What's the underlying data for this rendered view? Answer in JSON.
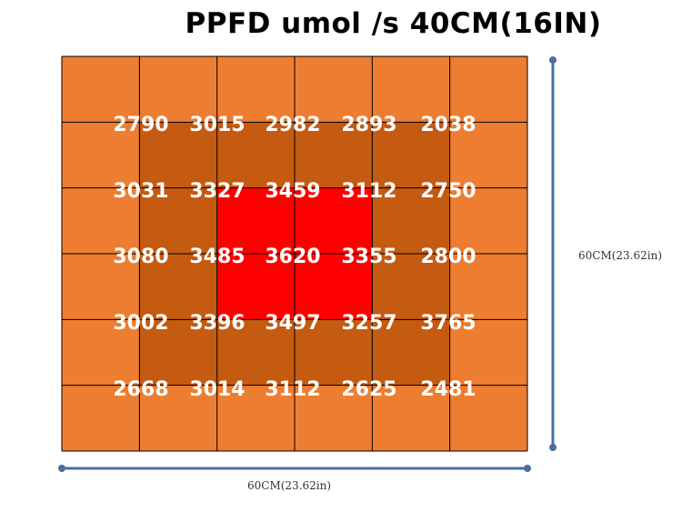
{
  "title": "PPFD umol /s  40CM(16IN)",
  "dimensions": {
    "width_label": "60CM(23.62in)",
    "height_label": "60CM(23.62in)"
  },
  "colors": {
    "low": "#ED7D31",
    "mid": "#C55A11",
    "high": "#FF0000",
    "grid_line": "#000000",
    "value_text": "#FFFFFF",
    "dimension_line": "#4A6FA0"
  },
  "chart_data": {
    "type": "heatmap",
    "title": "PPFD umol /s  40CM(16IN)",
    "unit": "umol/s",
    "rows": 5,
    "cols": 5,
    "values": [
      [
        2790,
        3015,
        2982,
        2893,
        2038
      ],
      [
        3031,
        3327,
        3459,
        3112,
        2750
      ],
      [
        3080,
        3485,
        3620,
        3355,
        2800
      ],
      [
        3002,
        3396,
        3497,
        3257,
        3765
      ],
      [
        2668,
        3014,
        3112,
        2625,
        2481
      ]
    ],
    "grid": true,
    "width_label": "60CM(23.62in)",
    "height_label": "60CM(23.62in)"
  }
}
